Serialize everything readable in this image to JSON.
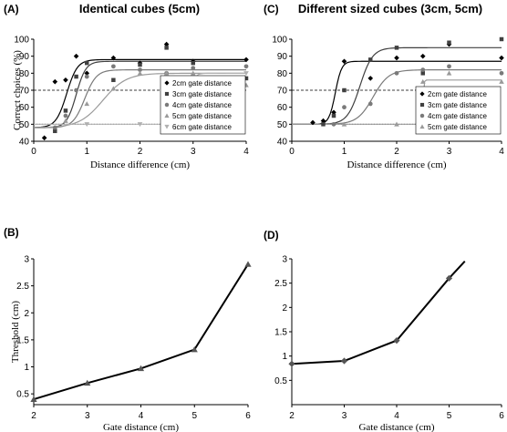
{
  "chart_data": [
    {
      "panel": "(A)",
      "type": "scatter",
      "title": "Identical cubes (5cm)",
      "xlabel": "Distance difference (cm)",
      "ylabel": "Correct choices (%)",
      "xlim": [
        0,
        4
      ],
      "ylim": [
        40,
        100
      ],
      "xticks": [
        "0",
        "1",
        "2",
        "3",
        "4"
      ],
      "yticks": [
        "40",
        "50",
        "60",
        "70",
        "80",
        "90",
        "100"
      ],
      "reference_lines": [
        70,
        50
      ],
      "legend": "lower-right",
      "series": [
        {
          "name": "2cm gate distance",
          "marker": "diamond",
          "color": "#000000",
          "x": [
            0.2,
            0.4,
            0.6,
            0.8,
            1.0,
            1.5,
            2.0,
            2.5,
            3.0,
            4.0
          ],
          "y": [
            42,
            75,
            76,
            90,
            80,
            89,
            86,
            97,
            87,
            88
          ],
          "fit": {
            "lower": 48,
            "upper": 88,
            "mid": 0.62,
            "scale": 0.1
          }
        },
        {
          "name": "3cm gate distance",
          "marker": "square",
          "color": "#404040",
          "x": [
            0.4,
            0.6,
            0.8,
            1.0,
            1.5,
            2.0,
            2.5,
            3.0,
            4.0
          ],
          "y": [
            46,
            58,
            78,
            86,
            76,
            85,
            95,
            86,
            77
          ],
          "fit": {
            "lower": 48,
            "upper": 87,
            "mid": 0.8,
            "scale": 0.09
          }
        },
        {
          "name": "4cm gate distance",
          "marker": "circle",
          "color": "#7a7a7a",
          "x": [
            0.4,
            0.6,
            0.8,
            1.0,
            1.5,
            2.0,
            2.5,
            3.0,
            4.0
          ],
          "y": [
            48,
            55,
            70,
            78,
            84,
            82,
            80,
            83,
            84
          ],
          "fit": {
            "lower": 48,
            "upper": 82,
            "mid": 0.96,
            "scale": 0.11
          }
        },
        {
          "name": "5cm gate distance",
          "marker": "triangle-up",
          "color": "#9a9a9a",
          "x": [
            0.6,
            1.0,
            1.5,
            2.0,
            2.5,
            3.0,
            4.0
          ],
          "y": [
            52,
            62,
            71,
            80,
            80,
            80,
            73
          ],
          "fit": {
            "lower": 48,
            "upper": 80,
            "mid": 1.3,
            "scale": 0.22
          }
        },
        {
          "name": "6cm gate distance",
          "marker": "triangle-down",
          "color": "#b0b0b0",
          "x": [
            1.0,
            2.0,
            2.5,
            3.0,
            4.0
          ],
          "y": [
            50,
            50,
            50,
            65,
            80
          ],
          "fit": {
            "lower": 50,
            "upper": 80,
            "mid": 2.92,
            "scale": 0.05
          }
        }
      ]
    },
    {
      "panel": "(C)",
      "type": "scatter",
      "title": "Different sized cubes (3cm, 5cm)",
      "xlabel": "Distance difference (cm)",
      "ylabel": "",
      "xlim": [
        0,
        4
      ],
      "ylim": [
        40,
        100
      ],
      "xticks": [
        "0",
        "1",
        "2",
        "3",
        "4"
      ],
      "yticks": [
        "40",
        "50",
        "60",
        "70",
        "80",
        "90",
        "100"
      ],
      "reference_lines": [
        70,
        50
      ],
      "legend": "lower-right",
      "series": [
        {
          "name": "2cm gate distance",
          "marker": "diamond",
          "color": "#000000",
          "x": [
            0.4,
            0.6,
            0.8,
            1.0,
            1.5,
            2.0,
            2.5,
            3.0,
            4.0
          ],
          "y": [
            51,
            52,
            57,
            87,
            77,
            89,
            90,
            97,
            89
          ],
          "fit": {
            "lower": 50,
            "upper": 87,
            "mid": 0.83,
            "scale": 0.06
          }
        },
        {
          "name": "3cm gate distance",
          "marker": "square",
          "color": "#404040",
          "x": [
            0.6,
            0.8,
            1.0,
            1.5,
            2.0,
            2.5,
            3.0,
            4.0
          ],
          "y": [
            50,
            55,
            70,
            88,
            95,
            80,
            98,
            100
          ],
          "fit": {
            "lower": 50,
            "upper": 95,
            "mid": 1.3,
            "scale": 0.12
          }
        },
        {
          "name": "4cm gate distance",
          "marker": "circle",
          "color": "#7a7a7a",
          "x": [
            0.8,
            1.0,
            1.5,
            2.0,
            2.5,
            3.0,
            4.0
          ],
          "y": [
            50,
            60,
            62,
            80,
            82,
            84,
            80
          ],
          "fit": {
            "lower": 50,
            "upper": 82,
            "mid": 1.55,
            "scale": 0.15
          }
        },
        {
          "name": "5cm gate distance",
          "marker": "triangle-up",
          "color": "#9a9a9a",
          "x": [
            1.0,
            2.0,
            2.5,
            3.0,
            4.0
          ],
          "y": [
            50,
            50,
            75,
            80,
            75
          ],
          "fit": {
            "lower": 50,
            "upper": 76,
            "mid": 2.5,
            "scale": 0.01
          }
        }
      ]
    },
    {
      "panel": "(B)",
      "type": "line",
      "title": "",
      "xlabel": "Gate distance (cm)",
      "ylabel": "Threshold (cm)",
      "xlim": [
        2,
        6
      ],
      "ylim": [
        0.3,
        3
      ],
      "xticks": [
        "2",
        "3",
        "4",
        "5",
        "6"
      ],
      "yticks": [
        "0.5",
        "1",
        "1.5",
        "2",
        "2.5",
        "3"
      ],
      "marker": "triangle-up",
      "x": [
        2,
        3,
        4,
        5,
        6
      ],
      "y": [
        0.4,
        0.7,
        0.97,
        1.32,
        2.9
      ]
    },
    {
      "panel": "(D)",
      "type": "line",
      "title": "",
      "xlabel": "Gate distance (cm)",
      "ylabel": "",
      "xlim": [
        2,
        6
      ],
      "ylim": [
        0,
        3
      ],
      "xticks": [
        "2",
        "3",
        "4",
        "5",
        "6"
      ],
      "yticks": [
        "0.5",
        "1",
        "1.5",
        "2",
        "2.5",
        "3"
      ],
      "marker": "diamond",
      "x": [
        2,
        3,
        4,
        5
      ],
      "y": [
        0.84,
        0.9,
        1.32,
        2.6
      ],
      "extension": {
        "x": 5.3,
        "y": 2.95
      }
    }
  ]
}
